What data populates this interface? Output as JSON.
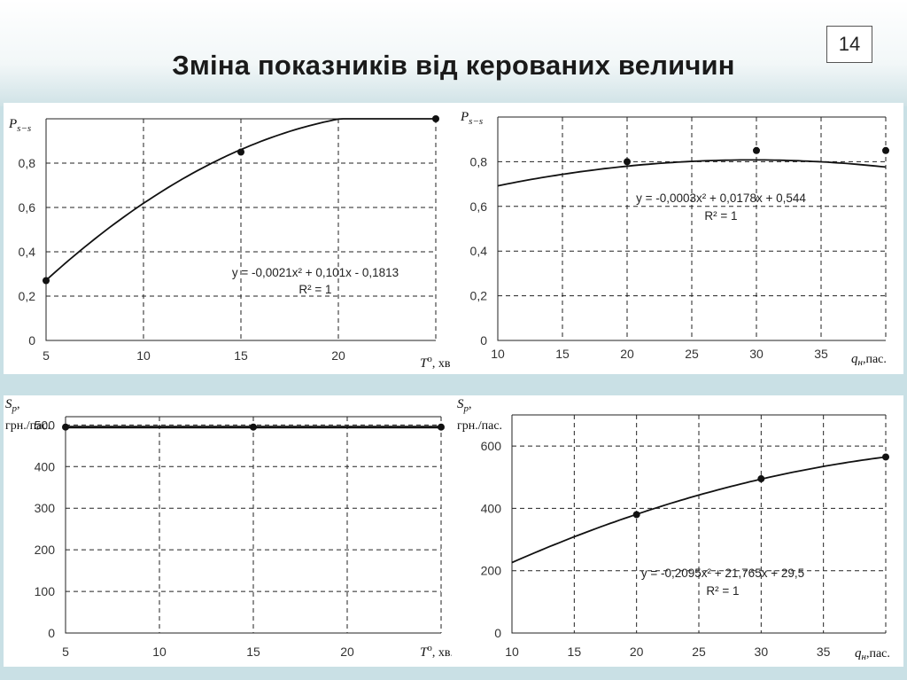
{
  "slide": {
    "title": "Зміна показників від керованих величин",
    "page_number": "14"
  },
  "chart_data": [
    {
      "id": "c1",
      "type": "line",
      "y_label": {
        "sym": "P",
        "sub": "s−s"
      },
      "x_label": {
        "sym": "T",
        "sup": "o",
        "unit": ", хв"
      },
      "xlim": [
        5,
        25
      ],
      "ylim": [
        0,
        1
      ],
      "x_ticks": [
        5,
        10,
        15,
        20
      ],
      "y_ticks": [
        0,
        0.2,
        0.4,
        0.6,
        0.8
      ],
      "y_tick_labels": [
        "0",
        "0,2",
        "0,4",
        "0,6",
        "0,8"
      ],
      "points": [
        [
          5,
          0.27
        ],
        [
          15,
          0.85
        ],
        [
          25,
          1.0
        ]
      ],
      "trendline": {
        "a": -0.0021,
        "b": 0.101,
        "c": -0.1813,
        "x_range": [
          5,
          25
        ],
        "y_max": 1
      },
      "equation": "y = -0,0021x² + 0,101x - 0,1813",
      "r2": "R² = 1"
    },
    {
      "id": "c2",
      "type": "line",
      "y_label": {
        "sym": "P",
        "sub": "s−s"
      },
      "x_label": {
        "sym": "q",
        "sub": "н",
        "unit": ",пас."
      },
      "xlim": [
        10,
        40
      ],
      "ylim": [
        0,
        1
      ],
      "x_ticks": [
        10,
        15,
        20,
        25,
        30,
        35
      ],
      "y_ticks": [
        0,
        0.2,
        0.4,
        0.6,
        0.8
      ],
      "y_tick_labels": [
        "0",
        "0,2",
        "0,4",
        "0,6",
        "0,8"
      ],
      "points": [
        [
          20,
          0.8
        ],
        [
          30,
          0.85
        ],
        [
          40,
          0.85
        ]
      ],
      "trendline": {
        "a": -0.0003,
        "b": 0.0178,
        "c": 0.544,
        "x_range": [
          10,
          40
        ]
      },
      "equation": "y = -0,0003x² + 0,0178x + 0,544",
      "r2": "R² = 1"
    },
    {
      "id": "c3",
      "type": "line",
      "y_label": {
        "sym": "S",
        "sub": "p",
        "unit": ",",
        "line2": "грн./пас."
      },
      "x_label": {
        "sym": "T",
        "sup": "o",
        "unit": ", хв."
      },
      "xlim": [
        5,
        25
      ],
      "ylim": [
        0,
        520
      ],
      "x_ticks": [
        5,
        10,
        15,
        20
      ],
      "y_ticks": [
        0,
        100,
        200,
        300,
        400,
        500
      ],
      "y_tick_labels": [
        "0",
        "100",
        "200",
        "300",
        "400",
        "500"
      ],
      "points": [
        [
          5,
          495
        ],
        [
          15,
          495
        ],
        [
          25,
          495
        ]
      ],
      "trendline": {
        "a": 0,
        "b": 0,
        "c": 495,
        "x_range": [
          5,
          25
        ]
      },
      "equation": "",
      "r2": ""
    },
    {
      "id": "c4",
      "type": "line",
      "y_label": {
        "sym": "S",
        "sub": "p",
        "unit": ",",
        "line2": "грн./пас."
      },
      "x_label": {
        "sym": "q",
        "sub": "н",
        "unit": ",пас."
      },
      "xlim": [
        10,
        40
      ],
      "ylim": [
        0,
        700
      ],
      "x_ticks": [
        10,
        15,
        20,
        25,
        30,
        35
      ],
      "y_ticks": [
        0,
        200,
        400,
        600
      ],
      "y_tick_labels": [
        "0",
        "200",
        "400",
        "600"
      ],
      "points": [
        [
          20,
          380
        ],
        [
          30,
          495
        ],
        [
          40,
          565
        ]
      ],
      "trendline": {
        "a": -0.2095,
        "b": 21.765,
        "c": 29.5,
        "x_range": [
          10,
          40
        ]
      },
      "equation": "y = -0,2095x² + 21,765x + 29,5",
      "r2": "R² = 1"
    }
  ]
}
